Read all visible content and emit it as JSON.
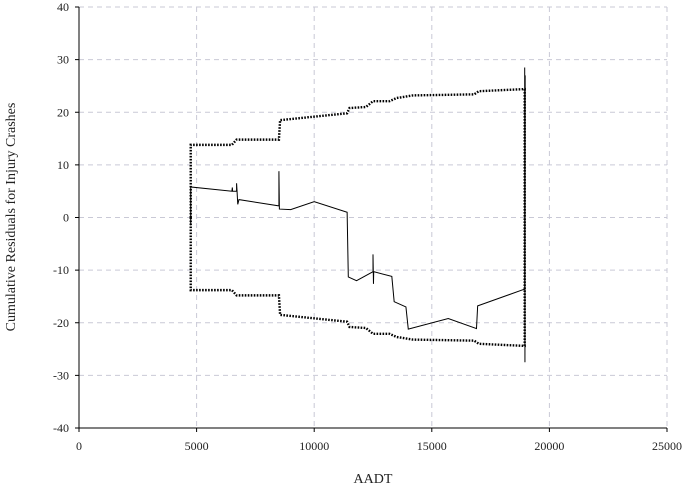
{
  "chart_data": {
    "type": "line",
    "title": "",
    "xlabel": "AADT",
    "ylabel": "Cumulative Residuals for Injury Crashes",
    "xlim": [
      0,
      25000
    ],
    "ylim": [
      -40,
      40
    ],
    "xticks": [
      0,
      5000,
      10000,
      15000,
      20000,
      25000
    ],
    "yticks": [
      -40,
      -30,
      -20,
      -10,
      0,
      10,
      20,
      30,
      40
    ],
    "xtick_labels": [
      "0",
      "5000",
      "10000",
      "15000",
      "20000",
      "25000"
    ],
    "ytick_labels": [
      "-40",
      "-30",
      "-20",
      "-10",
      "0",
      "10",
      "20",
      "30",
      "40"
    ],
    "grid": true,
    "legend": "none",
    "series": [
      {
        "style": "solid",
        "color": "#000000",
        "points": [
          [
            4750,
            -1.5
          ],
          [
            4750,
            5.8
          ],
          [
            6500,
            5.0
          ],
          [
            6520,
            5.7
          ],
          [
            6530,
            5.0
          ],
          [
            6700,
            5.0
          ],
          [
            6700,
            6.5
          ],
          [
            6720,
            5.0
          ],
          [
            6750,
            2.5
          ],
          [
            6800,
            3.4
          ],
          [
            8500,
            2.2
          ],
          [
            8500,
            8.8
          ],
          [
            8520,
            1.6
          ],
          [
            9000,
            1.5
          ],
          [
            10000,
            3.0
          ],
          [
            11400,
            1.0
          ],
          [
            11450,
            -11.3
          ],
          [
            11800,
            -12.0
          ],
          [
            12500,
            -10.3
          ],
          [
            12500,
            -7.0
          ],
          [
            12520,
            -12.6
          ],
          [
            12530,
            -10.3
          ],
          [
            13300,
            -11.2
          ],
          [
            13400,
            -16.0
          ],
          [
            13900,
            -17.0
          ],
          [
            14000,
            -21.2
          ],
          [
            15700,
            -19.2
          ],
          [
            16900,
            -21.1
          ],
          [
            16950,
            -16.8
          ],
          [
            18950,
            -13.6
          ],
          [
            18950,
            28.5
          ],
          [
            18960,
            -27.5
          ],
          [
            18970,
            27.0
          ]
        ]
      },
      {
        "style": "dotted",
        "color": "#000000",
        "points": [
          [
            4750,
            0
          ],
          [
            4750,
            13.8
          ],
          [
            6500,
            13.8
          ],
          [
            6700,
            14.8
          ],
          [
            8500,
            14.8
          ],
          [
            8550,
            18.5
          ],
          [
            11400,
            19.8
          ],
          [
            11500,
            20.8
          ],
          [
            12200,
            21.0
          ],
          [
            12500,
            22.1
          ],
          [
            13200,
            22.1
          ],
          [
            13500,
            22.7
          ],
          [
            14200,
            23.2
          ],
          [
            16800,
            23.4
          ],
          [
            17000,
            24.0
          ],
          [
            18950,
            24.4
          ],
          [
            18950,
            0
          ]
        ]
      },
      {
        "style": "dotted",
        "color": "#000000",
        "points": [
          [
            4750,
            0
          ],
          [
            4750,
            -13.8
          ],
          [
            6500,
            -13.8
          ],
          [
            6700,
            -14.8
          ],
          [
            8500,
            -14.8
          ],
          [
            8550,
            -18.5
          ],
          [
            11400,
            -19.8
          ],
          [
            11500,
            -20.8
          ],
          [
            12200,
            -21.0
          ],
          [
            12500,
            -22.1
          ],
          [
            13200,
            -22.1
          ],
          [
            13500,
            -22.7
          ],
          [
            14200,
            -23.2
          ],
          [
            16800,
            -23.4
          ],
          [
            17000,
            -24.0
          ],
          [
            18950,
            -24.4
          ],
          [
            18950,
            0
          ]
        ]
      }
    ]
  }
}
